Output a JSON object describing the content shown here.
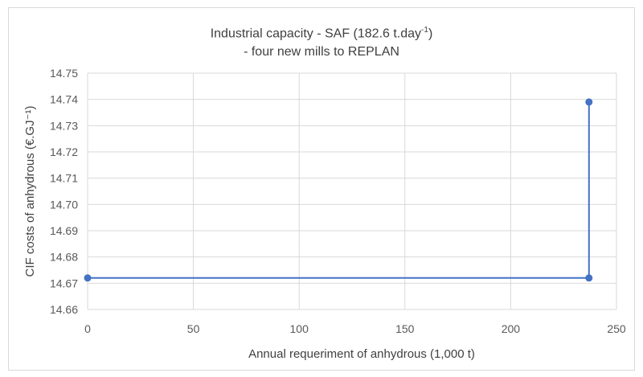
{
  "chart_data": {
    "type": "line",
    "title_line1_pre": "Industrial capacity - SAF (182.6 t.day",
    "title_line1_sup": "-1",
    "title_line1_post": ")",
    "title_line2": "- four new mills to REPLAN",
    "xlabel": "Annual requeriment of anhydrous (1,000 t)",
    "ylabel": "CIF costs of anhydrous (€.GJ⁻¹)",
    "xlim": [
      0,
      250
    ],
    "ylim": [
      14.66,
      14.75
    ],
    "x_ticks": [
      0,
      50,
      100,
      150,
      200,
      250
    ],
    "y_ticks": [
      14.66,
      14.67,
      14.68,
      14.69,
      14.7,
      14.71,
      14.72,
      14.73,
      14.74,
      14.75
    ],
    "x_tick_labels": [
      "0",
      "50",
      "100",
      "150",
      "200",
      "250"
    ],
    "y_tick_labels": [
      "14.66",
      "14.67",
      "14.68",
      "14.69",
      "14.70",
      "14.71",
      "14.72",
      "14.73",
      "14.74",
      "14.75"
    ],
    "grid": true,
    "series": [
      {
        "x": [
          0,
          237,
          237
        ],
        "y": [
          14.672,
          14.672,
          14.739
        ],
        "color": "#4472c4"
      }
    ]
  }
}
